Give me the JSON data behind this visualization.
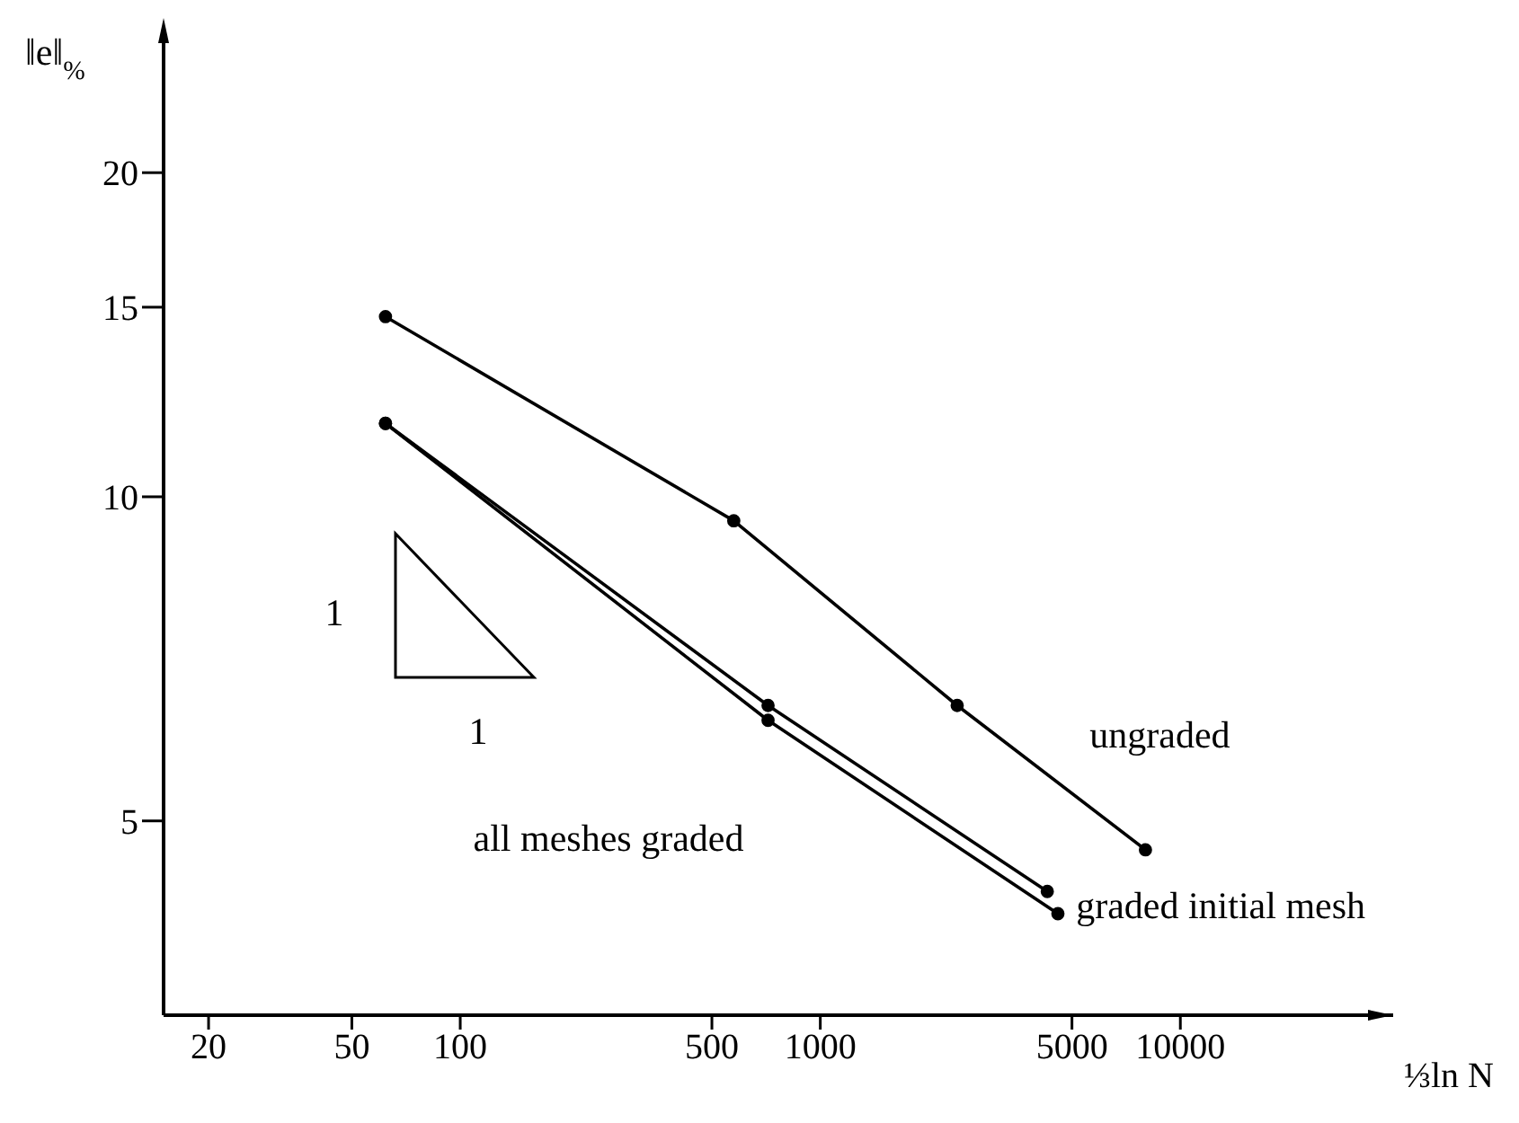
{
  "chart_data": {
    "type": "line",
    "xlabel": "⅓ln N",
    "ylabel": "‖e‖$_{%}$",
    "log": "xy",
    "marker": "circle",
    "line_style": "solid",
    "xlim": [
      15,
      39000
    ],
    "xticks": [
      20,
      50,
      100,
      500,
      1000,
      5000,
      10000
    ],
    "ylim": [
      3.3,
      27
    ],
    "yticks": [
      5,
      10,
      15,
      20
    ],
    "series": [
      {
        "name": "ungraded",
        "color": "#000000",
        "x": [
          62,
          575,
          2400,
          8000
        ],
        "values": [
          14.7,
          9.5,
          6.4,
          4.7
        ]
      },
      {
        "name": "graded initial mesh",
        "color": "#000000",
        "x": [
          62,
          716,
          4270
        ],
        "values": [
          11.7,
          6.4,
          4.3
        ]
      },
      {
        "name": "all meshes graded",
        "color": "#000000",
        "x": [
          62,
          716,
          4570
        ],
        "values": [
          11.7,
          6.2,
          4.1
        ]
      }
    ],
    "annotations": [
      "1",
      "1"
    ]
  }
}
